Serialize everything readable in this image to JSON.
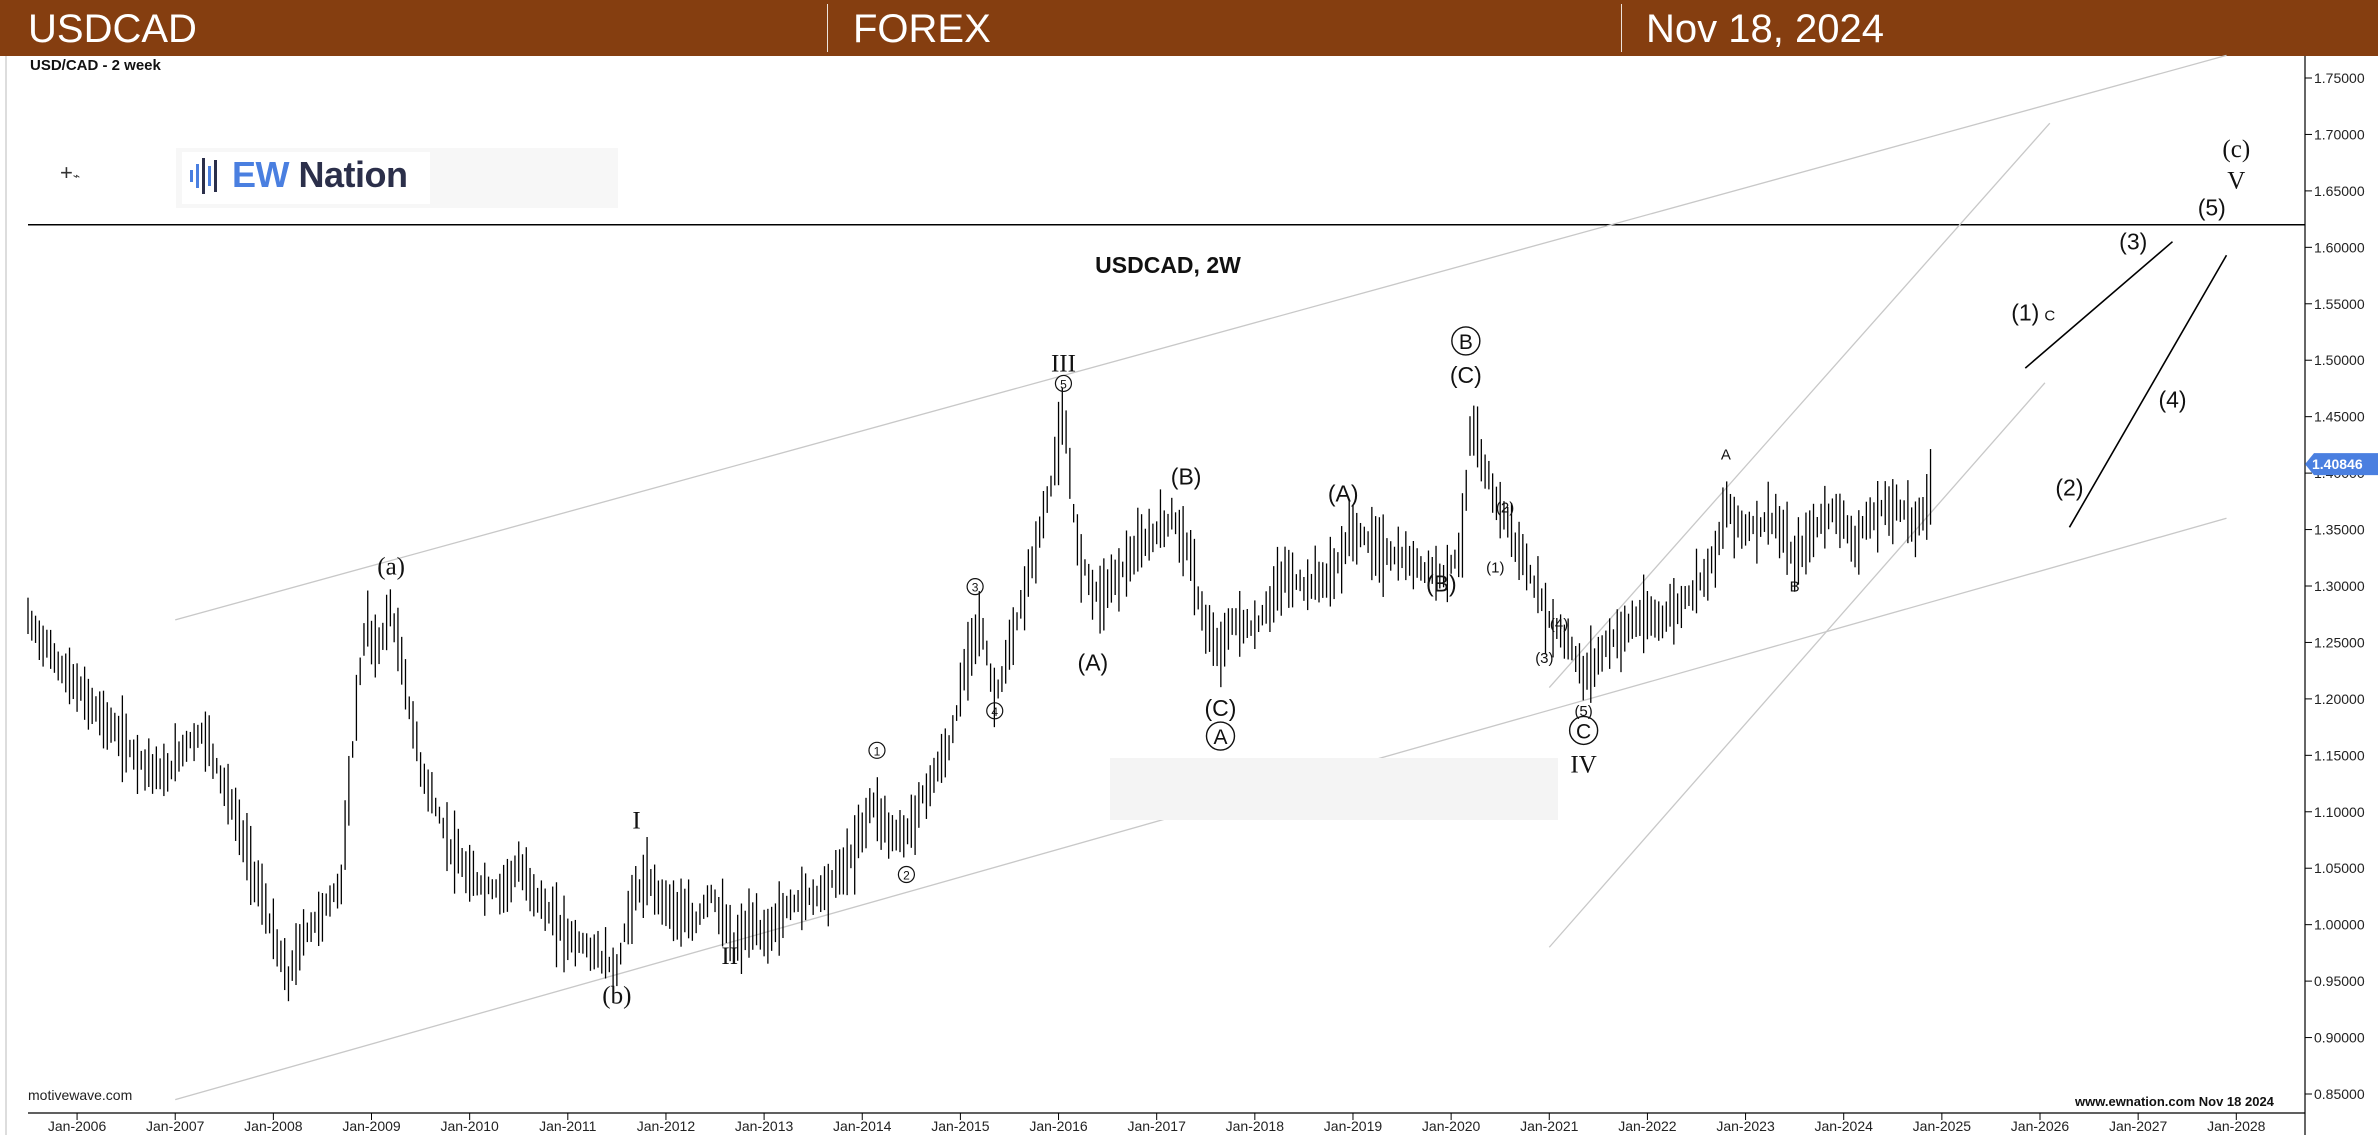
{
  "header": {
    "symbol": "USDCAD",
    "market": "FOREX",
    "date": "Nov 18, 2024"
  },
  "chart_subtitle": "USD/CAD - 2 week",
  "logo": {
    "ew": "EW",
    "nation": "Nation"
  },
  "footer": {
    "left": "motivewave.com",
    "right": "www.ewnation.com Nov 18 2024"
  },
  "colors": {
    "header_bg": "#853e10",
    "price_tag_bg": "#4a7fe0",
    "bars": "#000000",
    "channels": "#c8c8c8"
  },
  "chart_data": {
    "type": "bar",
    "title": "USDCAD, 2W",
    "last_price_label": "1.40846",
    "last_price": 1.408,
    "xlim": [
      2005.5,
      2028.7
    ],
    "ylim": [
      0.845,
      1.775
    ],
    "grid": false,
    "y_ticks": [
      "0.85000",
      "0.90000",
      "0.95000",
      "1.00000",
      "1.05000",
      "1.10000",
      "1.15000",
      "1.20000",
      "1.25000",
      "1.30000",
      "1.35000",
      "1.40000",
      "1.45000",
      "1.50000",
      "1.55000",
      "1.60000",
      "1.65000",
      "1.70000",
      "1.75000"
    ],
    "x_ticks": [
      "Jan-2006",
      "Jan-2007",
      "Jan-2008",
      "Jan-2009",
      "Jan-2010",
      "Jan-2011",
      "Jan-2012",
      "Jan-2013",
      "Jan-2014",
      "Jan-2015",
      "Jan-2016",
      "Jan-2017",
      "Jan-2018",
      "Jan-2019",
      "Jan-2020",
      "Jan-2021",
      "Jan-2022",
      "Jan-2023",
      "Jan-2024",
      "Jan-2025",
      "Jan-2026",
      "Jan-2027",
      "Jan-2028"
    ],
    "price_path": [
      [
        2005.5,
        1.27
      ],
      [
        2005.9,
        1.22
      ],
      [
        2006.3,
        1.18
      ],
      [
        2006.6,
        1.15
      ],
      [
        2006.9,
        1.13
      ],
      [
        2007.1,
        1.16
      ],
      [
        2007.3,
        1.17
      ],
      [
        2007.6,
        1.1
      ],
      [
        2007.9,
        1.02
      ],
      [
        2008.0,
        0.99
      ],
      [
        2008.15,
        0.95
      ],
      [
        2008.3,
        0.99
      ],
      [
        2008.5,
        1.01
      ],
      [
        2008.7,
        1.04
      ],
      [
        2008.85,
        1.2
      ],
      [
        2008.95,
        1.27
      ],
      [
        2009.05,
        1.24
      ],
      [
        2009.2,
        1.28
      ],
      [
        2009.5,
        1.14
      ],
      [
        2009.8,
        1.07
      ],
      [
        2010.0,
        1.04
      ],
      [
        2010.3,
        1.03
      ],
      [
        2010.5,
        1.05
      ],
      [
        2010.8,
        1.01
      ],
      [
        2011.0,
        0.99
      ],
      [
        2011.2,
        0.98
      ],
      [
        2011.5,
        0.96
      ],
      [
        2011.65,
        1.02
      ],
      [
        2011.8,
        1.04
      ],
      [
        2012.0,
        1.02
      ],
      [
        2012.3,
        1.0
      ],
      [
        2012.45,
        1.03
      ],
      [
        2012.7,
        0.98
      ],
      [
        2012.85,
        1.0
      ],
      [
        2013.0,
        0.99
      ],
      [
        2013.3,
        1.02
      ],
      [
        2013.6,
        1.03
      ],
      [
        2013.9,
        1.06
      ],
      [
        2014.1,
        1.11
      ],
      [
        2014.3,
        1.08
      ],
      [
        2014.45,
        1.08
      ],
      [
        2014.6,
        1.11
      ],
      [
        2014.9,
        1.16
      ],
      [
        2015.1,
        1.25
      ],
      [
        2015.2,
        1.27
      ],
      [
        2015.35,
        1.2
      ],
      [
        2015.5,
        1.24
      ],
      [
        2015.7,
        1.31
      ],
      [
        2015.9,
        1.38
      ],
      [
        2016.05,
        1.45
      ],
      [
        2016.2,
        1.33
      ],
      [
        2016.4,
        1.29
      ],
      [
        2016.6,
        1.31
      ],
      [
        2016.9,
        1.34
      ],
      [
        2017.15,
        1.36
      ],
      [
        2017.3,
        1.34
      ],
      [
        2017.45,
        1.28
      ],
      [
        2017.6,
        1.24
      ],
      [
        2017.8,
        1.27
      ],
      [
        2018.0,
        1.26
      ],
      [
        2018.3,
        1.31
      ],
      [
        2018.5,
        1.3
      ],
      [
        2018.8,
        1.31
      ],
      [
        2019.0,
        1.35
      ],
      [
        2019.3,
        1.33
      ],
      [
        2019.6,
        1.32
      ],
      [
        2019.9,
        1.31
      ],
      [
        2020.1,
        1.33
      ],
      [
        2020.2,
        1.44
      ],
      [
        2020.35,
        1.4
      ],
      [
        2020.5,
        1.37
      ],
      [
        2020.75,
        1.32
      ],
      [
        2021.0,
        1.27
      ],
      [
        2021.2,
        1.25
      ],
      [
        2021.35,
        1.22
      ],
      [
        2021.6,
        1.25
      ],
      [
        2021.9,
        1.27
      ],
      [
        2022.1,
        1.27
      ],
      [
        2022.3,
        1.28
      ],
      [
        2022.5,
        1.3
      ],
      [
        2022.7,
        1.33
      ],
      [
        2022.8,
        1.37
      ],
      [
        2023.0,
        1.35
      ],
      [
        2023.3,
        1.36
      ],
      [
        2023.5,
        1.32
      ],
      [
        2023.7,
        1.35
      ],
      [
        2023.9,
        1.37
      ],
      [
        2024.1,
        1.34
      ],
      [
        2024.4,
        1.37
      ],
      [
        2024.6,
        1.37
      ],
      [
        2024.75,
        1.35
      ],
      [
        2024.9,
        1.39
      ]
    ],
    "wave_labels": [
      {
        "t": "(a)",
        "x": 2009.2,
        "y": 1.31,
        "style": "serif"
      },
      {
        "t": "(b)",
        "x": 2011.5,
        "y": 0.93,
        "style": "serif"
      },
      {
        "t": "I",
        "x": 2011.7,
        "y": 1.085,
        "style": "serif"
      },
      {
        "t": "II",
        "x": 2012.65,
        "y": 0.965,
        "style": "serif"
      },
      {
        "t": "1",
        "x": 2014.15,
        "y": 1.15,
        "style": "circle-sm"
      },
      {
        "t": "2",
        "x": 2014.45,
        "y": 1.04,
        "style": "circle-sm"
      },
      {
        "t": "3",
        "x": 2015.15,
        "y": 1.295,
        "style": "circle-sm"
      },
      {
        "t": "4",
        "x": 2015.35,
        "y": 1.185,
        "style": "circle-sm"
      },
      {
        "t": "5",
        "x": 2016.05,
        "y": 1.475,
        "style": "circle-sm"
      },
      {
        "t": "III",
        "x": 2016.05,
        "y": 1.49,
        "style": "serif"
      },
      {
        "t": "(A)",
        "x": 2016.35,
        "y": 1.225,
        "style": "sans"
      },
      {
        "t": "(B)",
        "x": 2017.3,
        "y": 1.39,
        "style": "sans"
      },
      {
        "t": "(C)",
        "x": 2017.65,
        "y": 1.185,
        "style": "sans"
      },
      {
        "t": "A",
        "x": 2017.65,
        "y": 1.16,
        "style": "circle-lg"
      },
      {
        "t": "(A)",
        "x": 2018.9,
        "y": 1.375,
        "style": "sans"
      },
      {
        "t": "(B)",
        "x": 2019.9,
        "y": 1.295,
        "style": "sans"
      },
      {
        "t": "B",
        "x": 2020.15,
        "y": 1.51,
        "style": "circle-lg"
      },
      {
        "t": "(C)",
        "x": 2020.15,
        "y": 1.48,
        "style": "sans"
      },
      {
        "t": "(2)",
        "x": 2020.55,
        "y": 1.365,
        "style": "sans-sm"
      },
      {
        "t": "(1)",
        "x": 2020.45,
        "y": 1.312,
        "style": "sans-sm"
      },
      {
        "t": "(4)",
        "x": 2021.1,
        "y": 1.262,
        "style": "sans-sm"
      },
      {
        "t": "(3)",
        "x": 2020.95,
        "y": 1.232,
        "style": "sans-sm"
      },
      {
        "t": "(5)",
        "x": 2021.35,
        "y": 1.185,
        "style": "sans-sm"
      },
      {
        "t": "C",
        "x": 2021.35,
        "y": 1.165,
        "style": "circle-lg"
      },
      {
        "t": "IV",
        "x": 2021.35,
        "y": 1.135,
        "style": "serif"
      },
      {
        "t": "A",
        "x": 2022.8,
        "y": 1.412,
        "style": "sans-sm"
      },
      {
        "t": "B",
        "x": 2023.5,
        "y": 1.295,
        "style": "sans-sm"
      },
      {
        "t": "(1)",
        "x": 2025.85,
        "y": 1.535,
        "style": "sans"
      },
      {
        "t": "C",
        "x": 2026.1,
        "y": 1.535,
        "style": "sans-sm"
      },
      {
        "t": "(2)",
        "x": 2026.3,
        "y": 1.38,
        "style": "sans"
      },
      {
        "t": "(3)",
        "x": 2026.95,
        "y": 1.598,
        "style": "sans"
      },
      {
        "t": "(4)",
        "x": 2027.35,
        "y": 1.458,
        "style": "sans"
      },
      {
        "t": "(5)",
        "x": 2027.75,
        "y": 1.628,
        "style": "sans"
      },
      {
        "t": "V",
        "x": 2028.0,
        "y": 1.652,
        "style": "serif"
      },
      {
        "t": "(c)",
        "x": 2028.0,
        "y": 1.68,
        "style": "serif"
      }
    ],
    "channel_lines": [
      [
        2007.0,
        1.27,
        2027.9,
        1.77
      ],
      [
        2007.0,
        0.845,
        2027.9,
        1.36
      ],
      [
        2021.0,
        1.21,
        2026.1,
        1.71
      ],
      [
        2021.0,
        0.98,
        2026.05,
        1.48
      ]
    ],
    "projection_lines": [
      [
        2025.85,
        1.493,
        2027.35,
        1.605
      ],
      [
        2026.3,
        1.352,
        2027.9,
        1.593
      ]
    ],
    "hlines": [
      1.62
    ]
  }
}
